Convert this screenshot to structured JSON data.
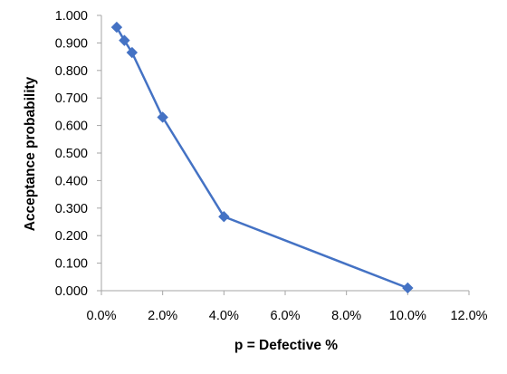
{
  "chart_data": {
    "type": "scatter",
    "title": "",
    "xlabel": "p = Defective %",
    "ylabel": "Acceptance probability",
    "x": [
      0.005,
      0.0075,
      0.01,
      0.02,
      0.04,
      0.1
    ],
    "series": [
      {
        "values": [
          0.957,
          0.909,
          0.865,
          0.63,
          0.269,
          0.01
        ]
      }
    ],
    "xlim": [
      0,
      0.12
    ],
    "ylim": [
      0,
      1
    ],
    "x_ticks": [
      "0.0%",
      "2.0%",
      "4.0%",
      "6.0%",
      "8.0%",
      "10.0%",
      "12.0%"
    ],
    "y_ticks": [
      "0.000",
      "0.100",
      "0.200",
      "0.300",
      "0.400",
      "0.500",
      "0.600",
      "0.700",
      "0.800",
      "0.900",
      "1.000"
    ],
    "grid": false,
    "legend": "none",
    "line": true,
    "marker": "diamond",
    "colors": {
      "series": "#4472C4",
      "axis": "#A6A6A6",
      "text": "#000000"
    }
  }
}
